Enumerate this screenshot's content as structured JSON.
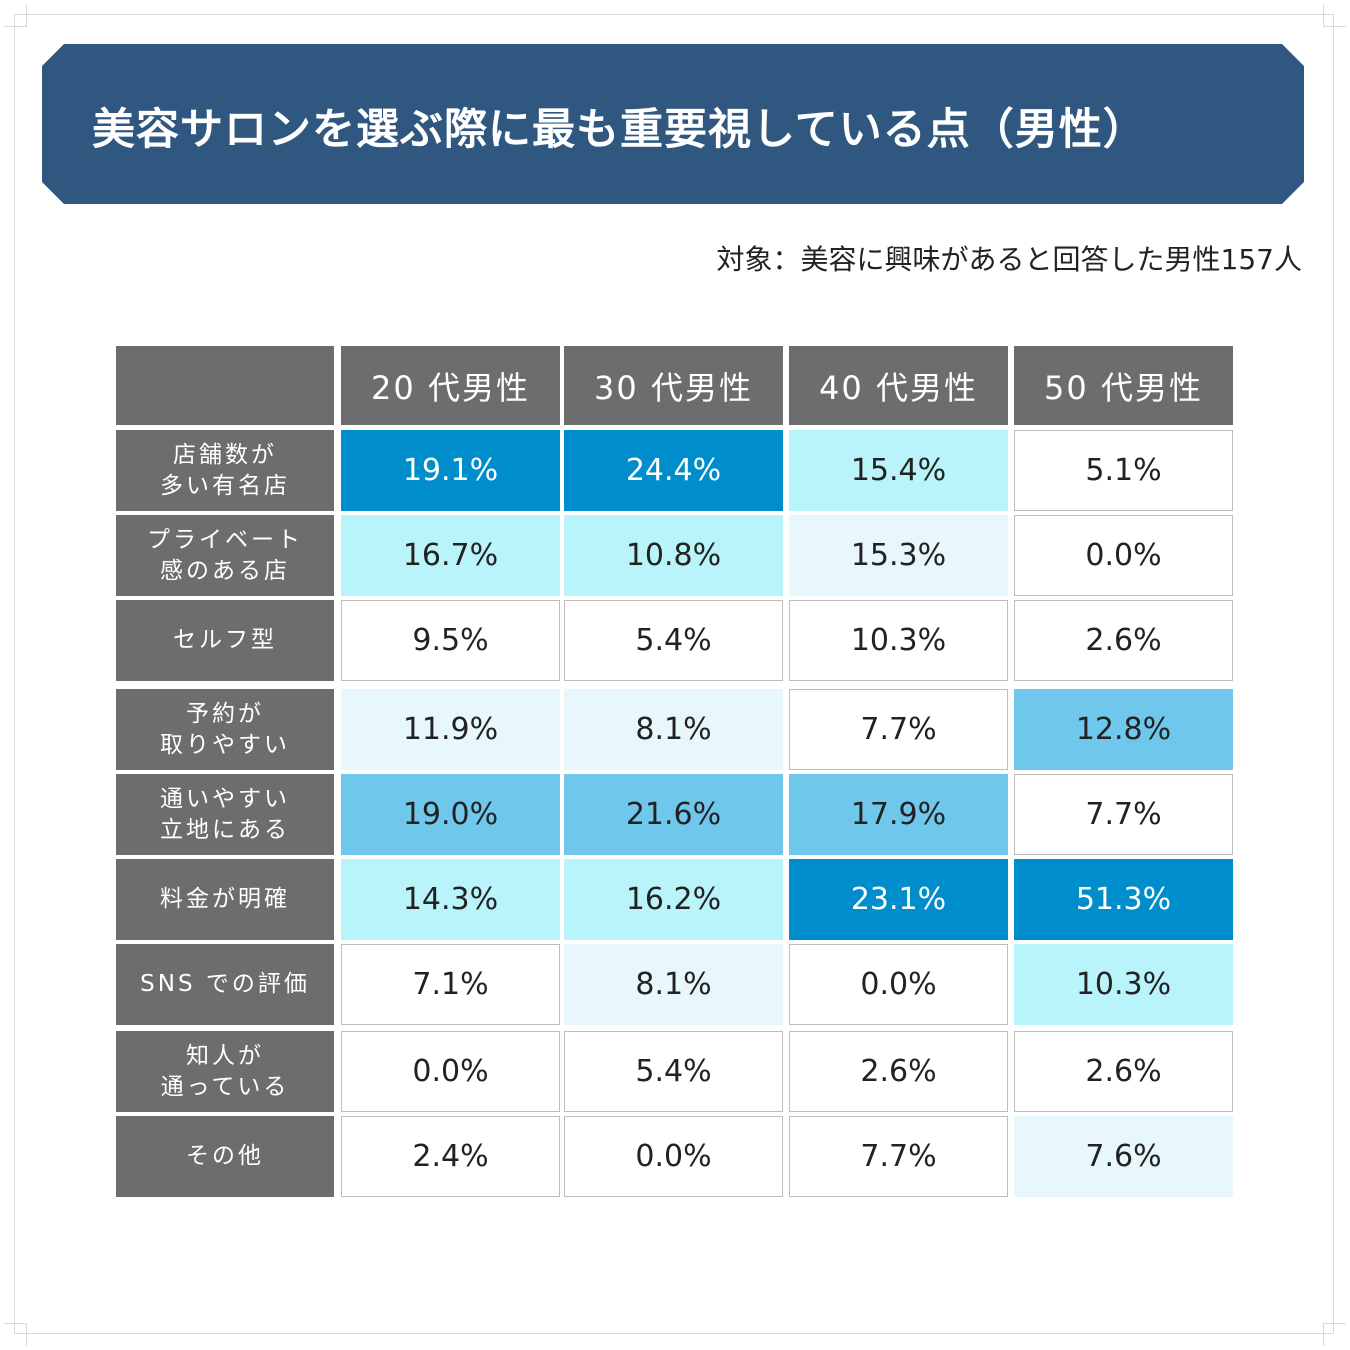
{
  "title": "美容サロンを選ぶ際に最も重要視している点（男性）",
  "subtitle": "対象：美容に興味があると回答した男性157人",
  "chart_data": {
    "type": "table",
    "columns": [
      "20 代男性",
      "30 代男性",
      "40 代男性",
      "50 代男性"
    ],
    "rows": [
      {
        "label": "店舗数が\n多い有名店",
        "values": [
          "19.1%",
          "24.4%",
          "15.4%",
          "5.1%"
        ],
        "levels": [
          3,
          3,
          1,
          0
        ]
      },
      {
        "label": "プライベート\n感のある店",
        "values": [
          "16.7%",
          "10.8%",
          "15.3%",
          "0.0%"
        ],
        "levels": [
          1,
          1,
          4,
          0
        ]
      },
      {
        "label": "セルフ型",
        "values": [
          "9.5%",
          "5.4%",
          "10.3%",
          "2.6%"
        ],
        "levels": [
          0,
          0,
          0,
          0
        ]
      },
      {
        "label": "予約が\n取りやすい",
        "values": [
          "11.9%",
          "8.1%",
          "7.7%",
          "12.8%"
        ],
        "levels": [
          4,
          4,
          0,
          2
        ]
      },
      {
        "label": "通いやすい\n立地にある",
        "values": [
          "19.0%",
          "21.6%",
          "17.9%",
          "7.7%"
        ],
        "levels": [
          2,
          2,
          2,
          0
        ]
      },
      {
        "label": "料金が明確",
        "values": [
          "14.3%",
          "16.2%",
          "23.1%",
          "51.3%"
        ],
        "levels": [
          1,
          1,
          3,
          3
        ]
      },
      {
        "label": "SNS での評価",
        "values": [
          "7.1%",
          "8.1%",
          "0.0%",
          "10.3%"
        ],
        "levels": [
          0,
          4,
          0,
          1
        ]
      },
      {
        "label": "知人が\n通っている",
        "values": [
          "0.0%",
          "5.4%",
          "2.6%",
          "2.6%"
        ],
        "levels": [
          0,
          0,
          0,
          0
        ]
      },
      {
        "label": "その他",
        "values": [
          "2.4%",
          "0.0%",
          "7.7%",
          "7.6%"
        ],
        "levels": [
          0,
          0,
          0,
          4
        ]
      }
    ],
    "level_colors": [
      "#ffffff",
      "#b9f4fb",
      "#6fc8ec",
      "#008dcb",
      "#e8f7fb"
    ]
  }
}
